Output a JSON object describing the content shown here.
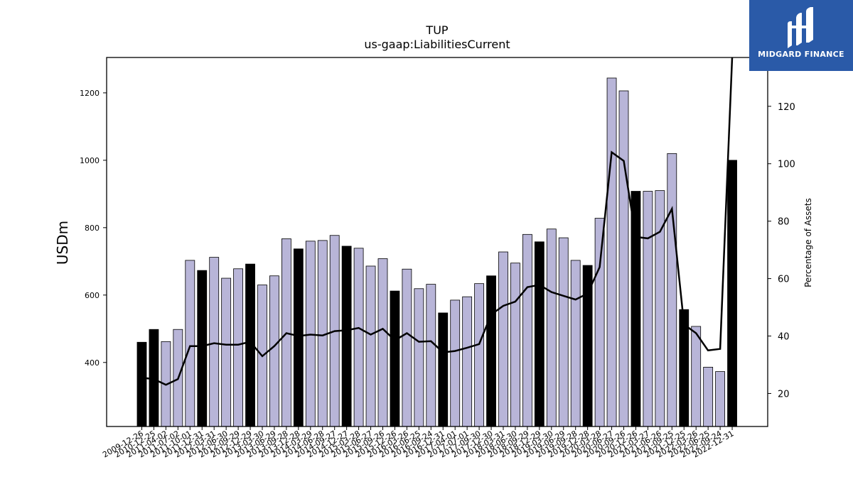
{
  "logo": {
    "text": "MIDGARD FINANCE",
    "icon": "midgard-logo-mark",
    "background": "#2a5aa8"
  },
  "chart_data": {
    "type": "bar",
    "title": "TUP",
    "subtitle": "us-gaap:LiabilitiesCurrent",
    "ylabel": "USDm",
    "y2label": "Percentage of Assets",
    "ylim": [
      210,
      1305
    ],
    "y2lim": [
      8.5,
      137
    ],
    "yticks": [
      400,
      600,
      800,
      1000,
      1200
    ],
    "y2ticks": [
      20,
      40,
      60,
      80,
      100,
      120
    ],
    "xtick_labels": [
      "2009-12-26",
      "2010-12-25",
      "2011-04-02",
      "2011-07-02",
      "2011-10-01",
      "2011-12-31",
      "2012-03-31",
      "2012-06-30",
      "2012-09-29",
      "2012-12-29",
      "2013-03-30",
      "2013-06-29",
      "2013-09-28",
      "2013-12-28",
      "2014-03-29",
      "2014-06-28",
      "2014-09-27",
      "2014-12-27",
      "2015-03-28",
      "2015-06-27",
      "2015-09-26",
      "2015-12-26",
      "2016-03-26",
      "2016-06-25",
      "2016-09-24",
      "2016-12-31",
      "2017-04-01",
      "2017-07-01",
      "2017-09-30",
      "2017-12-30",
      "2018-03-31",
      "2018-06-30",
      "2018-09-29",
      "2018-12-29",
      "2019-03-30",
      "2019-06-29",
      "2019-09-28",
      "2019-12-28",
      "2020-03-28",
      "2020-06-27",
      "2020-09-26",
      "2020-12-26",
      "2021-03-27",
      "2021-06-26",
      "2021-09-25",
      "2021-12-25",
      "2022-03-26",
      "2022-06-25",
      "2022-09-24",
      "2022-12-31"
    ],
    "values": [
      460,
      498,
      462,
      498,
      703,
      673,
      712,
      650,
      678,
      692,
      630,
      657,
      767,
      737,
      760,
      762,
      777,
      745,
      739,
      686,
      708,
      612,
      677,
      619,
      632,
      547,
      585,
      595,
      634,
      657,
      728,
      695,
      780,
      758,
      796,
      770,
      703,
      688,
      828,
      1244,
      1206,
      908,
      908,
      910,
      1020,
      557,
      507,
      386,
      373,
      1000
    ],
    "fiscal_year_end": [
      true,
      true,
      false,
      false,
      false,
      true,
      false,
      false,
      false,
      true,
      false,
      false,
      false,
      true,
      false,
      false,
      false,
      true,
      false,
      false,
      false,
      true,
      false,
      false,
      false,
      true,
      false,
      false,
      false,
      true,
      false,
      false,
      false,
      true,
      false,
      false,
      false,
      true,
      false,
      false,
      false,
      true,
      false,
      false,
      false,
      true,
      false,
      false,
      false,
      true
    ],
    "series": [
      {
        "name": "Percentage of Assets",
        "axis": "right",
        "type": "line",
        "values": [
          25.5,
          25,
          23,
          25,
          36.5,
          36.5,
          37.5,
          37,
          37,
          38,
          33,
          36.5,
          41,
          40,
          40.5,
          40.2,
          41.7,
          42,
          42.8,
          40.5,
          42.5,
          38.5,
          41,
          38,
          38.2,
          34.3,
          34.8,
          35.9,
          37.2,
          47.5,
          50.5,
          52,
          57,
          57.8,
          55.3,
          54,
          52.7,
          54.8,
          64,
          104,
          101,
          74.5,
          74,
          76.3,
          84.3,
          44,
          41,
          35,
          35.5,
          137
        ]
      }
    ],
    "colors": {
      "fy_bar": "#000000",
      "quarter_bar": "#b8b5d8",
      "line": "#000000"
    },
    "grid": false
  }
}
